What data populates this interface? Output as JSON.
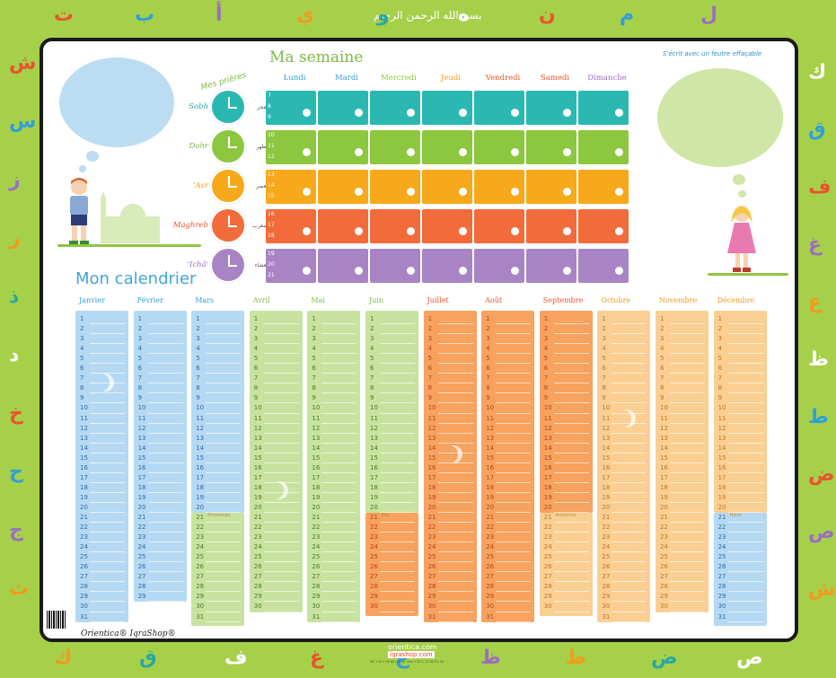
{
  "header": {
    "basmala": "بسم الله الرحمن الرحيم",
    "week_title": "Ma semaine",
    "note": "S'écrit avec un feutre effaçable",
    "prayers_title": "Mes prières",
    "calendar_title": "Mon calendrier"
  },
  "colors": {
    "frame": "#a6d04a",
    "blue": "#b6d9f3",
    "green": "#c8e3a0",
    "orange": "#f7a25e",
    "peach": "#fbcf92",
    "teal": "#2bb8b0",
    "lime": "#8dc63f",
    "amber": "#f7a81b",
    "red": "#f26b3a",
    "purple": "#a884c4"
  },
  "week": {
    "days": [
      {
        "label": "Lundi",
        "color": "#2e9fd8"
      },
      {
        "label": "Mardi",
        "color": "#2e9fd8"
      },
      {
        "label": "Mercredi",
        "color": "#8dc63f"
      },
      {
        "label": "Jeudi",
        "color": "#f39a1e"
      },
      {
        "label": "Vendredi",
        "color": "#e8542c"
      },
      {
        "label": "Samedi",
        "color": "#e8542c"
      },
      {
        "label": "Dimanche",
        "color": "#9b6fc0"
      }
    ],
    "prayers": [
      {
        "name": "Sobh",
        "arabic": "الفجر",
        "color": "#2bb8b0",
        "name_color": "#2aa8a0",
        "hours": [
          "7",
          "8",
          "9"
        ]
      },
      {
        "name": "Dohr",
        "arabic": "الظهر",
        "color": "#8dc63f",
        "name_color": "#7db944",
        "hours": [
          "10",
          "11",
          "12"
        ]
      },
      {
        "name": "'Asr",
        "arabic": "العصر",
        "color": "#f7a81b",
        "name_color": "#f39a1e",
        "hours": [
          "13",
          "14",
          "15"
        ]
      },
      {
        "name": "Maghreb",
        "arabic": "المغرب",
        "color": "#f26b3a",
        "name_color": "#e8542c",
        "hours": [
          "16",
          "17",
          "18"
        ]
      },
      {
        "name": "'Ichâ'",
        "arabic": "العشاء",
        "color": "#a884c4",
        "name_color": "#9b6fc0",
        "hours": [
          "19",
          "20",
          "21"
        ]
      }
    ]
  },
  "calendar": {
    "months": [
      {
        "name": "Janvier",
        "days": 31,
        "name_color": "#2e9fd8",
        "split": 0,
        "split_label": "",
        "top_color": "#b6d9f3",
        "bottom_color": "#b6d9f3"
      },
      {
        "name": "Février",
        "days": 29,
        "name_color": "#2e9fd8",
        "split": 0,
        "split_label": "",
        "top_color": "#b6d9f3",
        "bottom_color": "#b6d9f3"
      },
      {
        "name": "Mars",
        "days": 31,
        "name_color": "#2e9fd8",
        "split": 20,
        "split_label": "Printemps",
        "top_color": "#b6d9f3",
        "bottom_color": "#c8e3a0"
      },
      {
        "name": "Avril",
        "days": 30,
        "name_color": "#7db944",
        "split": 0,
        "split_label": "",
        "top_color": "#c8e3a0",
        "bottom_color": "#c8e3a0"
      },
      {
        "name": "Mai",
        "days": 31,
        "name_color": "#7db944",
        "split": 0,
        "split_label": "",
        "top_color": "#c8e3a0",
        "bottom_color": "#c8e3a0"
      },
      {
        "name": "Juin",
        "days": 30,
        "name_color": "#7db944",
        "split": 20,
        "split_label": "Été",
        "top_color": "#c8e3a0",
        "bottom_color": "#f7a25e"
      },
      {
        "name": "Juillet",
        "days": 31,
        "name_color": "#e8542c",
        "split": 0,
        "split_label": "",
        "top_color": "#f7a25e",
        "bottom_color": "#f7a25e"
      },
      {
        "name": "Août",
        "days": 31,
        "name_color": "#e8542c",
        "split": 0,
        "split_label": "",
        "top_color": "#f7a25e",
        "bottom_color": "#f7a25e"
      },
      {
        "name": "Septembre",
        "days": 30,
        "name_color": "#e8542c",
        "split": 20,
        "split_label": "Automne",
        "top_color": "#f7a25e",
        "bottom_color": "#fbcf92"
      },
      {
        "name": "Octobre",
        "days": 31,
        "name_color": "#f39a1e",
        "split": 0,
        "split_label": "",
        "top_color": "#fbcf92",
        "bottom_color": "#fbcf92"
      },
      {
        "name": "Novembre",
        "days": 30,
        "name_color": "#f39a1e",
        "split": 0,
        "split_label": "",
        "top_color": "#fbcf92",
        "bottom_color": "#fbcf92"
      },
      {
        "name": "Décembre",
        "days": 31,
        "name_color": "#f39a1e",
        "split": 20,
        "split_label": "Hiver",
        "top_color": "#fbcf92",
        "bottom_color": "#b6d9f3"
      }
    ]
  },
  "footer": {
    "brand": "Orientica®   IqraShop®",
    "site1": "orientica.com",
    "site2": "iqrashop.com",
    "address": "Tél +33 9 50 88 07 78 · Fax +33 1 72 63 93 54"
  },
  "border_letters": [
    "ت",
    "ب",
    "أ",
    "ي",
    "و",
    "ه",
    "ن",
    "م",
    "ل",
    "ك",
    "ق",
    "ف",
    "غ",
    "ع",
    "ظ",
    "ط",
    "ض",
    "ص",
    "ش",
    "س",
    "ز",
    "ر",
    "ذ",
    "د",
    "خ",
    "ح",
    "ج",
    "ث"
  ]
}
